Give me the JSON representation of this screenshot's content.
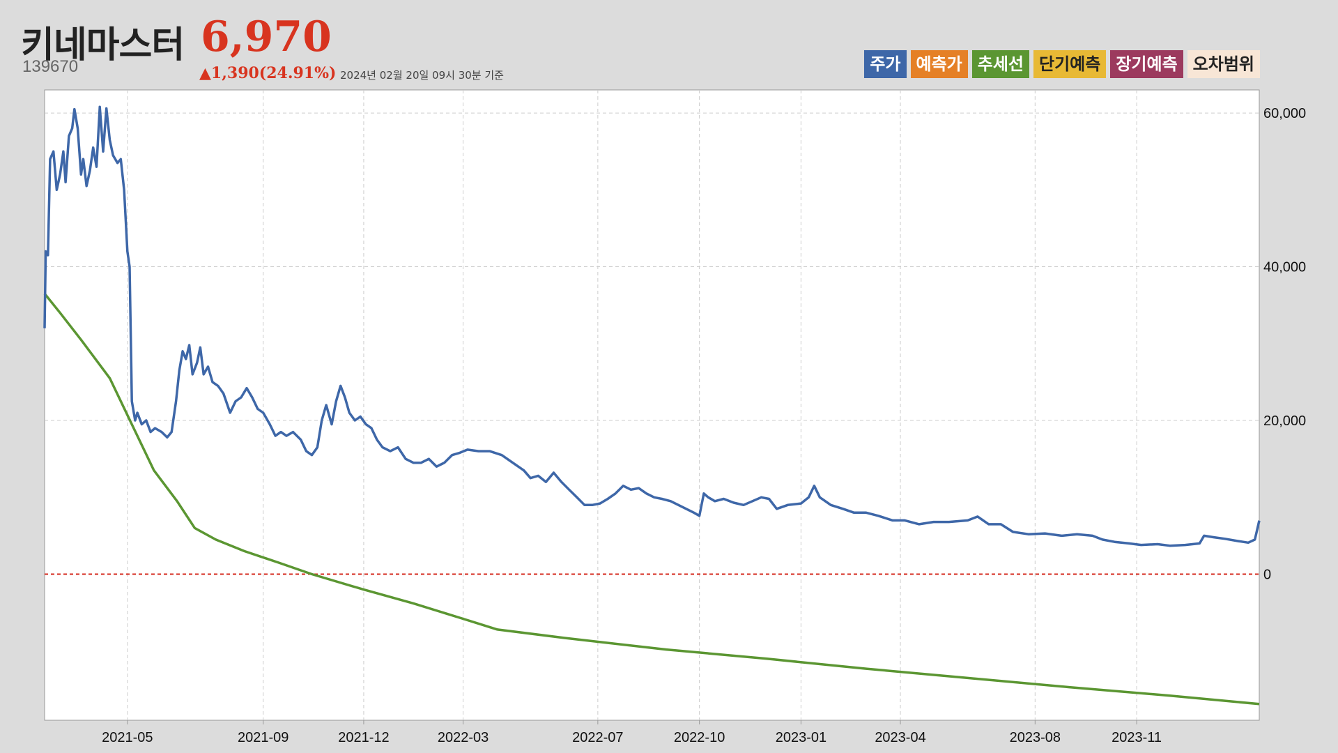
{
  "header": {
    "name": "키네마스터",
    "code": "139670",
    "price": "6,970",
    "change": "▲1,390(24.91%)",
    "date": "2024년 02월 20일 09시 30분 기준"
  },
  "legend": [
    {
      "label": "주가",
      "color": "#3e67a8",
      "text_color": "#ffffff"
    },
    {
      "label": "예측가",
      "color": "#e58026",
      "text_color": "#ffffff"
    },
    {
      "label": "추세선",
      "color": "#5b9632",
      "text_color": "#ffffff"
    },
    {
      "label": "단기예측",
      "color": "#e8b935",
      "text_color": "#222222"
    },
    {
      "label": "장기예측",
      "color": "#9c3a5e",
      "text_color": "#ffffff"
    },
    {
      "label": "오차범위",
      "color": "#f8e6d6",
      "text_color": "#222222"
    }
  ],
  "chart_data": {
    "type": "line",
    "x_start": "2021-02-15",
    "x_end": "2024-02-20",
    "x_ticks": [
      "2021-05",
      "2021-09",
      "2021-12",
      "2022-03",
      "2022-07",
      "2022-10",
      "2023-01",
      "2023-04",
      "2023-08",
      "2023-11"
    ],
    "y_ticks": [
      0,
      20000,
      40000,
      60000
    ],
    "y_tick_labels": [
      "0",
      "20,000",
      "40,000",
      "60,000"
    ],
    "ylim": [
      -19000,
      63000
    ],
    "grid": true,
    "reference_line": {
      "y": 0,
      "color": "#d42a1e",
      "style": "dotted"
    },
    "series": [
      {
        "name": "주가",
        "color": "#3e67a8",
        "points": [
          [
            "2021-02-15",
            32000
          ],
          [
            "2021-02-16",
            42000
          ],
          [
            "2021-02-18",
            41500
          ],
          [
            "2021-02-20",
            54000
          ],
          [
            "2021-02-23",
            55000
          ],
          [
            "2021-02-26",
            50000
          ],
          [
            "2021-03-01",
            52000
          ],
          [
            "2021-03-04",
            55000
          ],
          [
            "2021-03-06",
            51000
          ],
          [
            "2021-03-09",
            57000
          ],
          [
            "2021-03-12",
            58000
          ],
          [
            "2021-03-14",
            60500
          ],
          [
            "2021-03-17",
            58000
          ],
          [
            "2021-03-20",
            52000
          ],
          [
            "2021-03-22",
            54000
          ],
          [
            "2021-03-25",
            50500
          ],
          [
            "2021-03-28",
            52500
          ],
          [
            "2021-03-31",
            55500
          ],
          [
            "2021-04-03",
            53000
          ],
          [
            "2021-04-06",
            60800
          ],
          [
            "2021-04-09",
            55000
          ],
          [
            "2021-04-12",
            60600
          ],
          [
            "2021-04-15",
            56500
          ],
          [
            "2021-04-18",
            54500
          ],
          [
            "2021-04-22",
            53500
          ],
          [
            "2021-04-25",
            54000
          ],
          [
            "2021-04-28",
            50000
          ],
          [
            "2021-05-01",
            42000
          ],
          [
            "2021-05-03",
            40000
          ],
          [
            "2021-05-05",
            22500
          ],
          [
            "2021-05-08",
            20000
          ],
          [
            "2021-05-10",
            21000
          ],
          [
            "2021-05-14",
            19500
          ],
          [
            "2021-05-18",
            20000
          ],
          [
            "2021-05-22",
            18500
          ],
          [
            "2021-05-26",
            19000
          ],
          [
            "2021-06-01",
            18500
          ],
          [
            "2021-06-06",
            17800
          ],
          [
            "2021-06-10",
            18500
          ],
          [
            "2021-06-14",
            22500
          ],
          [
            "2021-06-17",
            26500
          ],
          [
            "2021-06-20",
            29000
          ],
          [
            "2021-06-23",
            28000
          ],
          [
            "2021-06-26",
            29800
          ],
          [
            "2021-06-29",
            26000
          ],
          [
            "2021-07-03",
            27500
          ],
          [
            "2021-07-06",
            29500
          ],
          [
            "2021-07-09",
            26000
          ],
          [
            "2021-07-13",
            27000
          ],
          [
            "2021-07-17",
            25000
          ],
          [
            "2021-07-22",
            24500
          ],
          [
            "2021-07-27",
            23500
          ],
          [
            "2021-08-02",
            21000
          ],
          [
            "2021-08-07",
            22500
          ],
          [
            "2021-08-12",
            23000
          ],
          [
            "2021-08-17",
            24200
          ],
          [
            "2021-08-22",
            23000
          ],
          [
            "2021-08-27",
            21500
          ],
          [
            "2021-09-01",
            21000
          ],
          [
            "2021-09-07",
            19500
          ],
          [
            "2021-09-12",
            18000
          ],
          [
            "2021-09-17",
            18500
          ],
          [
            "2021-09-22",
            18000
          ],
          [
            "2021-09-28",
            18500
          ],
          [
            "2021-10-05",
            17500
          ],
          [
            "2021-10-10",
            16000
          ],
          [
            "2021-10-15",
            15500
          ],
          [
            "2021-10-20",
            16500
          ],
          [
            "2021-10-24",
            20000
          ],
          [
            "2021-10-28",
            22000
          ],
          [
            "2021-11-02",
            19500
          ],
          [
            "2021-11-06",
            22500
          ],
          [
            "2021-11-10",
            24500
          ],
          [
            "2021-11-14",
            23000
          ],
          [
            "2021-11-18",
            21000
          ],
          [
            "2021-11-23",
            20000
          ],
          [
            "2021-11-28",
            20500
          ],
          [
            "2021-12-03",
            19500
          ],
          [
            "2021-12-08",
            19000
          ],
          [
            "2021-12-13",
            17500
          ],
          [
            "2021-12-18",
            16500
          ],
          [
            "2021-12-25",
            16000
          ],
          [
            "2022-01-01",
            16500
          ],
          [
            "2022-01-08",
            15000
          ],
          [
            "2022-01-15",
            14500
          ],
          [
            "2022-01-22",
            14500
          ],
          [
            "2022-01-29",
            15000
          ],
          [
            "2022-02-05",
            14000
          ],
          [
            "2022-02-12",
            14500
          ],
          [
            "2022-02-19",
            15500
          ],
          [
            "2022-02-26",
            15800
          ],
          [
            "2022-03-05",
            16200
          ],
          [
            "2022-03-15",
            16000
          ],
          [
            "2022-03-25",
            16000
          ],
          [
            "2022-04-05",
            15500
          ],
          [
            "2022-04-15",
            14500
          ],
          [
            "2022-04-25",
            13500
          ],
          [
            "2022-05-01",
            12500
          ],
          [
            "2022-05-08",
            12800
          ],
          [
            "2022-05-15",
            12000
          ],
          [
            "2022-05-22",
            13200
          ],
          [
            "2022-05-29",
            12000
          ],
          [
            "2022-06-05",
            11000
          ],
          [
            "2022-06-12",
            10000
          ],
          [
            "2022-06-19",
            9000
          ],
          [
            "2022-06-26",
            9000
          ],
          [
            "2022-07-03",
            9200
          ],
          [
            "2022-07-10",
            9800
          ],
          [
            "2022-07-17",
            10500
          ],
          [
            "2022-07-24",
            11500
          ],
          [
            "2022-07-31",
            11000
          ],
          [
            "2022-08-07",
            11200
          ],
          [
            "2022-08-14",
            10500
          ],
          [
            "2022-08-21",
            10000
          ],
          [
            "2022-08-28",
            9800
          ],
          [
            "2022-09-05",
            9500
          ],
          [
            "2022-09-12",
            9000
          ],
          [
            "2022-09-19",
            8500
          ],
          [
            "2022-09-26",
            8000
          ],
          [
            "2022-10-01",
            7600
          ],
          [
            "2022-10-05",
            10500
          ],
          [
            "2022-10-09",
            10000
          ],
          [
            "2022-10-15",
            9500
          ],
          [
            "2022-10-23",
            9800
          ],
          [
            "2022-11-01",
            9300
          ],
          [
            "2022-11-10",
            9000
          ],
          [
            "2022-11-18",
            9500
          ],
          [
            "2022-11-26",
            10000
          ],
          [
            "2022-12-03",
            9800
          ],
          [
            "2022-12-10",
            8500
          ],
          [
            "2022-12-20",
            9000
          ],
          [
            "2023-01-01",
            9200
          ],
          [
            "2023-01-08",
            10000
          ],
          [
            "2023-01-13",
            11500
          ],
          [
            "2023-01-18",
            10000
          ],
          [
            "2023-01-28",
            9000
          ],
          [
            "2023-02-08",
            8500
          ],
          [
            "2023-02-18",
            8000
          ],
          [
            "2023-03-01",
            8000
          ],
          [
            "2023-03-12",
            7600
          ],
          [
            "2023-03-25",
            7000
          ],
          [
            "2023-04-05",
            7000
          ],
          [
            "2023-04-18",
            6500
          ],
          [
            "2023-05-01",
            6800
          ],
          [
            "2023-05-15",
            6800
          ],
          [
            "2023-06-01",
            7000
          ],
          [
            "2023-06-10",
            7500
          ],
          [
            "2023-06-20",
            6500
          ],
          [
            "2023-07-01",
            6500
          ],
          [
            "2023-07-12",
            5500
          ],
          [
            "2023-07-26",
            5200
          ],
          [
            "2023-08-10",
            5300
          ],
          [
            "2023-08-25",
            5000
          ],
          [
            "2023-09-08",
            5200
          ],
          [
            "2023-09-22",
            5000
          ],
          [
            "2023-10-01",
            4500
          ],
          [
            "2023-10-12",
            4200
          ],
          [
            "2023-10-25",
            4000
          ],
          [
            "2023-11-05",
            3800
          ],
          [
            "2023-11-20",
            3900
          ],
          [
            "2023-12-01",
            3700
          ],
          [
            "2023-12-15",
            3800
          ],
          [
            "2023-12-28",
            4000
          ],
          [
            "2024-01-01",
            5000
          ],
          [
            "2024-01-10",
            4800
          ],
          [
            "2024-01-20",
            4600
          ],
          [
            "2024-02-01",
            4300
          ],
          [
            "2024-02-10",
            4100
          ],
          [
            "2024-02-16",
            4500
          ],
          [
            "2024-02-20",
            6970
          ]
        ]
      },
      {
        "name": "추세선",
        "color": "#5b9632",
        "points": [
          [
            "2021-02-15",
            36500
          ],
          [
            "2021-03-01",
            34000
          ],
          [
            "2021-03-20",
            30500
          ],
          [
            "2021-04-15",
            25500
          ],
          [
            "2021-05-05",
            19500
          ],
          [
            "2021-05-25",
            13500
          ],
          [
            "2021-06-15",
            9500
          ],
          [
            "2021-07-01",
            6000
          ],
          [
            "2021-07-20",
            4500
          ],
          [
            "2021-08-15",
            3000
          ],
          [
            "2021-09-15",
            1500
          ],
          [
            "2021-10-15",
            0
          ],
          [
            "2021-12-01",
            -2000
          ],
          [
            "2022-01-15",
            -3800
          ],
          [
            "2022-03-01",
            -5800
          ],
          [
            "2022-04-01",
            -7200
          ],
          [
            "2022-06-01",
            -8300
          ],
          [
            "2022-09-01",
            -9800
          ],
          [
            "2022-12-01",
            -11000
          ],
          [
            "2023-03-01",
            -12300
          ],
          [
            "2023-06-01",
            -13500
          ],
          [
            "2023-09-01",
            -14700
          ],
          [
            "2023-12-01",
            -15800
          ],
          [
            "2024-02-20",
            -16900
          ]
        ]
      }
    ]
  }
}
